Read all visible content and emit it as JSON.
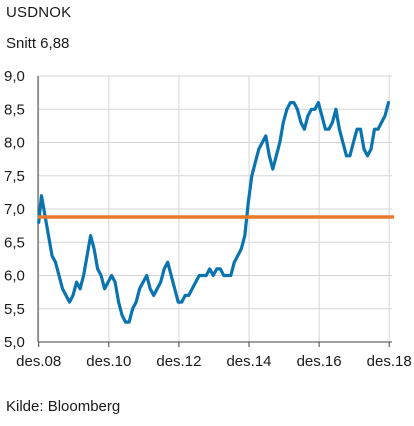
{
  "header": {
    "title": "USDNOK",
    "subtitle": "Snitt 6,88"
  },
  "footer": {
    "source": "Kilde: Bloomberg"
  },
  "colors": {
    "series": "#0a74b0",
    "average": "#e8792b",
    "grid": "#d6d6d6",
    "axis": "#444444"
  },
  "chart_data": {
    "type": "line",
    "title": "USDNOK",
    "subtitle": "Snitt 6,88",
    "xlabel": "",
    "ylabel": "",
    "ylim": [
      5.0,
      9.0
    ],
    "xlim": [
      2008.9,
      2019.0
    ],
    "y_ticks": [
      "5,0",
      "5,5",
      "6,0",
      "6,5",
      "7,0",
      "7,5",
      "8,0",
      "8,5",
      "9,0"
    ],
    "x_ticks": [
      {
        "label": "des.08",
        "x": 2008.92
      },
      {
        "label": "des.10",
        "x": 2010.92
      },
      {
        "label": "des.12",
        "x": 2012.92
      },
      {
        "label": "des.14",
        "x": 2014.92
      },
      {
        "label": "des.16",
        "x": 2016.92
      },
      {
        "label": "des.18",
        "x": 2018.92
      }
    ],
    "grid": true,
    "average": {
      "label": "Snitt 6,88",
      "value": 6.88
    },
    "series": [
      {
        "x": [
          2008.92,
          2009.0,
          2009.1,
          2009.2,
          2009.3,
          2009.4,
          2009.5,
          2009.6,
          2009.7,
          2009.8,
          2009.9,
          2010.0,
          2010.1,
          2010.2,
          2010.3,
          2010.4,
          2010.5,
          2010.6,
          2010.7,
          2010.8,
          2010.9,
          2011.0,
          2011.1,
          2011.2,
          2011.3,
          2011.4,
          2011.5,
          2011.6,
          2011.7,
          2011.8,
          2011.9,
          2012.0,
          2012.1,
          2012.2,
          2012.3,
          2012.4,
          2012.5,
          2012.6,
          2012.7,
          2012.8,
          2012.9,
          2013.0,
          2013.1,
          2013.2,
          2013.3,
          2013.4,
          2013.5,
          2013.6,
          2013.7,
          2013.8,
          2013.9,
          2014.0,
          2014.1,
          2014.2,
          2014.3,
          2014.4,
          2014.5,
          2014.6,
          2014.7,
          2014.8,
          2014.9,
          2015.0,
          2015.1,
          2015.2,
          2015.3,
          2015.4,
          2015.5,
          2015.6,
          2015.7,
          2015.8,
          2015.9,
          2016.0,
          2016.1,
          2016.2,
          2016.3,
          2016.4,
          2016.5,
          2016.6,
          2016.7,
          2016.8,
          2016.9,
          2017.0,
          2017.1,
          2017.2,
          2017.3,
          2017.4,
          2017.5,
          2017.6,
          2017.7,
          2017.8,
          2017.9,
          2018.0,
          2018.1,
          2018.2,
          2018.3,
          2018.4,
          2018.5,
          2018.6,
          2018.7,
          2018.8,
          2018.9
        ],
        "values": [
          6.8,
          7.2,
          6.9,
          6.6,
          6.3,
          6.2,
          6.0,
          5.8,
          5.7,
          5.6,
          5.7,
          5.9,
          5.8,
          6.0,
          6.3,
          6.6,
          6.4,
          6.1,
          6.0,
          5.8,
          5.9,
          6.0,
          5.9,
          5.6,
          5.4,
          5.3,
          5.3,
          5.5,
          5.6,
          5.8,
          5.9,
          6.0,
          5.8,
          5.7,
          5.8,
          5.9,
          6.1,
          6.2,
          6.0,
          5.8,
          5.6,
          5.6,
          5.7,
          5.7,
          5.8,
          5.9,
          6.0,
          6.0,
          6.0,
          6.1,
          6.0,
          6.1,
          6.1,
          6.0,
          6.0,
          6.0,
          6.2,
          6.3,
          6.4,
          6.6,
          7.1,
          7.5,
          7.7,
          7.9,
          8.0,
          8.1,
          7.8,
          7.6,
          7.8,
          8.0,
          8.3,
          8.5,
          8.6,
          8.6,
          8.5,
          8.3,
          8.2,
          8.4,
          8.5,
          8.5,
          8.6,
          8.4,
          8.2,
          8.2,
          8.3,
          8.5,
          8.2,
          8.0,
          7.8,
          7.8,
          8.0,
          8.2,
          8.2,
          7.9,
          7.8,
          7.9,
          8.2,
          8.2,
          8.3,
          8.4,
          8.6
        ]
      }
    ]
  }
}
